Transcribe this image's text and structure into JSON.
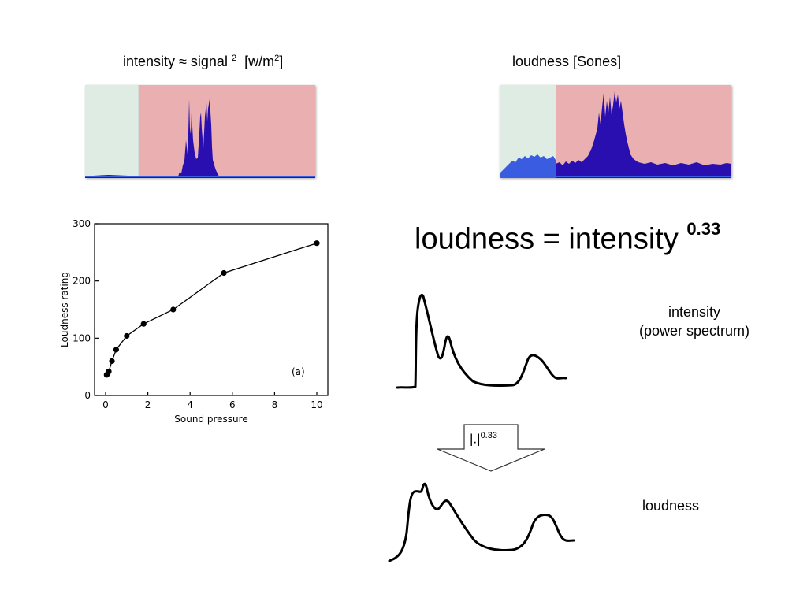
{
  "left_panel": {
    "title_main": "intensity ≈ signal",
    "title_exp": "2",
    "title_unit_pre": "[w/m",
    "title_unit_exp": "2",
    "title_unit_post": "]"
  },
  "right_panel": {
    "title": "loudness [Sones]"
  },
  "equation": {
    "lhs": "loudness = intensity",
    "exponent": "0.33"
  },
  "intensity_label": {
    "line1": "intensity",
    "line2": "(power spectrum)"
  },
  "loudness_label": "loudness",
  "arrow": {
    "text": "|.|",
    "exp": "0.33"
  },
  "colors": {
    "silence_region": "#dfece3",
    "signal_region": "#eab0b1",
    "signal_fill": "#2a0fb0",
    "edge_fill": "#3a5ce0"
  },
  "chart_data": {
    "type": "line",
    "x": [
      0.05,
      0.1,
      0.15,
      0.3,
      0.5,
      1.0,
      1.8,
      3.2,
      5.6,
      10
    ],
    "y": [
      36,
      38,
      42,
      60,
      80,
      104,
      125,
      150,
      214,
      266
    ],
    "xlabel": "Sound pressure",
    "ylabel": "Loudness rating",
    "xlim": [
      0,
      10
    ],
    "ylim": [
      0,
      300
    ],
    "xticks": [
      "0",
      "2",
      "4",
      "6",
      "8",
      "10"
    ],
    "yticks": [
      "0",
      "100",
      "200",
      "300"
    ],
    "annotation": "(a)",
    "grid": false,
    "markers": true
  }
}
